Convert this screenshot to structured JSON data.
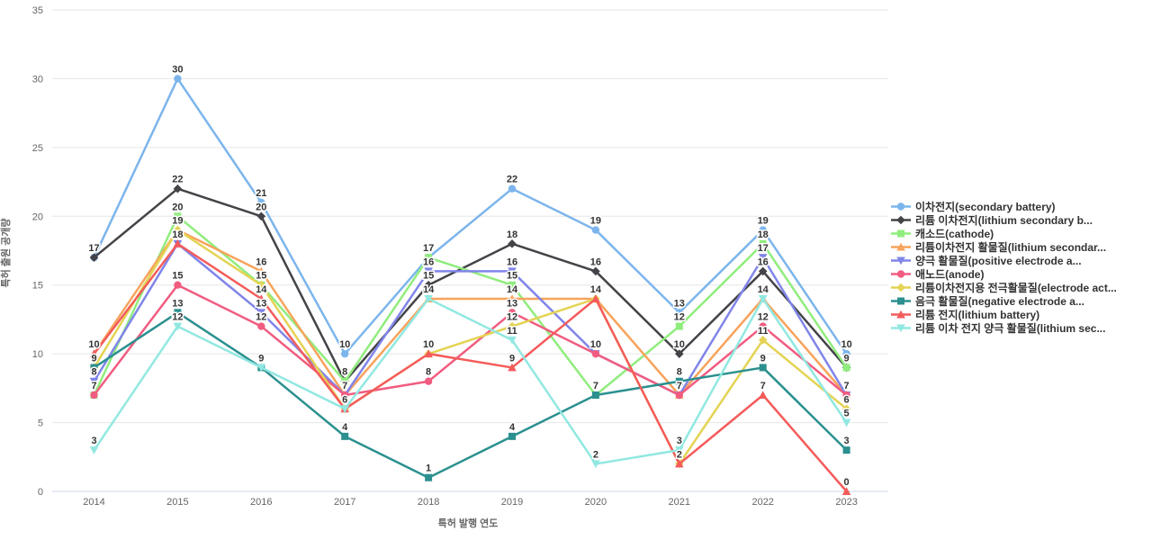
{
  "axes": {
    "x_title": "특허 발행 연도",
    "y_title": "특허 출원 공개량"
  },
  "chart_data": {
    "type": "line",
    "title": "",
    "xlabel": "특허 발행 연도",
    "ylabel": "특허 출원 공개량",
    "ylim": [
      0,
      35
    ],
    "y_ticks": [
      0,
      5,
      10,
      15,
      20,
      25,
      30,
      35
    ],
    "grid": true,
    "legend_position": "right-middle",
    "data_labels": true,
    "categories": [
      "2014",
      "2015",
      "2016",
      "2017",
      "2018",
      "2019",
      "2020",
      "2021",
      "2022",
      "2023"
    ],
    "series": [
      {
        "name": "이차전지(secondary battery)",
        "color": "#7cb5ec",
        "marker": "circle",
        "values": [
          17,
          30,
          21,
          10,
          17,
          22,
          19,
          13,
          19,
          10
        ]
      },
      {
        "name": "리튬 이차전지(lithium secondary b...",
        "color": "#434348",
        "marker": "diamond",
        "values": [
          17,
          22,
          20,
          8,
          15,
          18,
          16,
          10,
          16,
          9
        ]
      },
      {
        "name": "캐소드(cathode)",
        "color": "#90ed7d",
        "marker": "square",
        "values": [
          7,
          20,
          15,
          8,
          17,
          15,
          7,
          12,
          18,
          9
        ]
      },
      {
        "name": "리튬이차전지 활물질(lithium secondar...",
        "color": "#f7a35c",
        "marker": "triangle",
        "values": [
          10,
          19,
          16,
          7,
          14,
          14,
          14,
          7,
          14,
          7
        ]
      },
      {
        "name": "양극 활물질(positive electrode a...",
        "color": "#8085e9",
        "marker": "triangle-down",
        "values": [
          8,
          18,
          13,
          7,
          16,
          16,
          10,
          7,
          17,
          7
        ]
      },
      {
        "name": "애노드(anode)",
        "color": "#f15c80",
        "marker": "circle",
        "values": [
          7,
          15,
          12,
          7,
          8,
          13,
          10,
          7,
          12,
          7
        ]
      },
      {
        "name": "리튬이차전지용 전극활물질(electrode act...",
        "color": "#e4d354",
        "marker": "diamond",
        "values": [
          9,
          19,
          15,
          6,
          10,
          12,
          14,
          2,
          11,
          6
        ]
      },
      {
        "name": "음극 활물질(negative electrode a...",
        "color": "#2b908f",
        "marker": "square",
        "values": [
          9,
          13,
          9,
          4,
          1,
          4,
          7,
          8,
          9,
          3
        ]
      },
      {
        "name": "리튬 전지(lithium battery)",
        "color": "#f45b5b",
        "marker": "triangle",
        "values": [
          10,
          18,
          14,
          6,
          10,
          9,
          14,
          2,
          7,
          0
        ]
      },
      {
        "name": "리튬 이차 전지 양극 활물질(lithium sec...",
        "color": "#91e8e1",
        "marker": "triangle-down",
        "values": [
          3,
          12,
          9,
          6,
          14,
          11,
          2,
          3,
          14,
          5
        ]
      }
    ],
    "style": {
      "grid_color": "#e6e6e6",
      "axis_line_color": "#ccd6eb",
      "tick_label_color": "#666666",
      "data_label_color": "#333333"
    }
  }
}
